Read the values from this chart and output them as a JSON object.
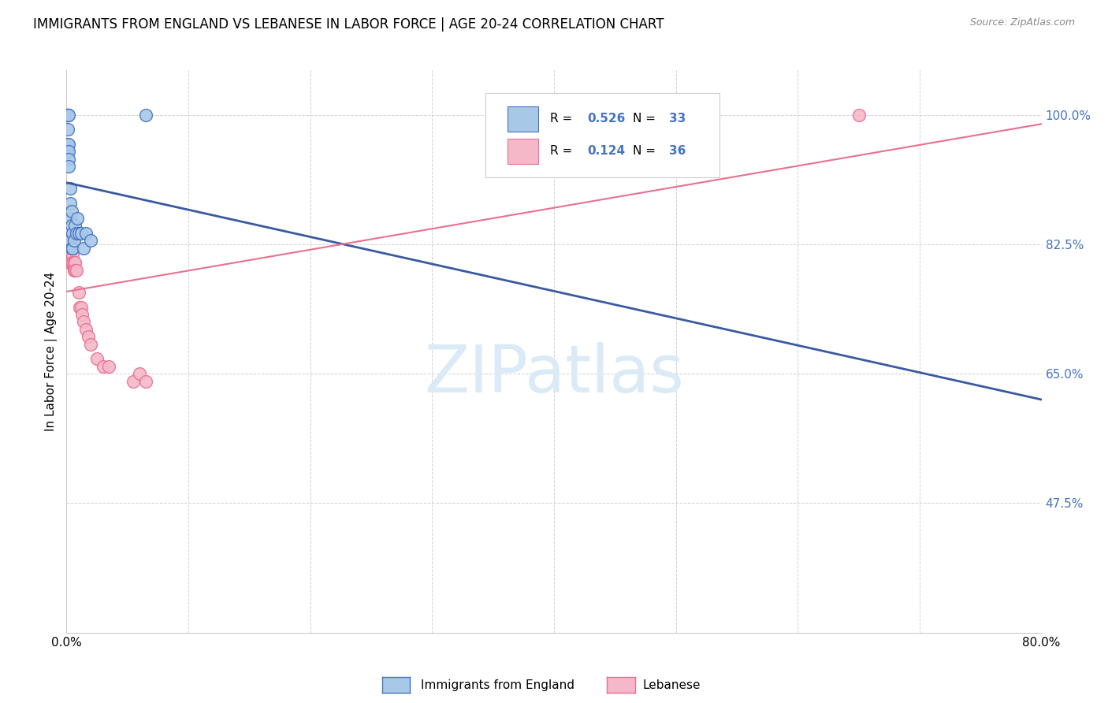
{
  "title": "IMMIGRANTS FROM ENGLAND VS LEBANESE IN LABOR FORCE | AGE 20-24 CORRELATION CHART",
  "source": "Source: ZipAtlas.com",
  "ylabel": "In Labor Force | Age 20-24",
  "xlim": [
    0.0,
    0.8
  ],
  "ylim": [
    0.3,
    1.06
  ],
  "yticks": [
    0.475,
    0.65,
    0.825,
    1.0
  ],
  "ytick_labels": [
    "47.5%",
    "65.0%",
    "82.5%",
    "100.0%"
  ],
  "xtick_positions": [
    0.0,
    0.1,
    0.2,
    0.3,
    0.4,
    0.5,
    0.6,
    0.7,
    0.8
  ],
  "xtick_labels": [
    "0.0%",
    "",
    "",
    "",
    "",
    "",
    "",
    "",
    "80.0%"
  ],
  "england_x": [
    0.001,
    0.001,
    0.001,
    0.001,
    0.001,
    0.001,
    0.001,
    0.001,
    0.001,
    0.002,
    0.002,
    0.002,
    0.002,
    0.002,
    0.003,
    0.003,
    0.003,
    0.003,
    0.004,
    0.004,
    0.004,
    0.005,
    0.005,
    0.006,
    0.007,
    0.008,
    0.009,
    0.01,
    0.012,
    0.014,
    0.016,
    0.02,
    0.065
  ],
  "england_y": [
    1.0,
    1.0,
    1.0,
    1.0,
    1.0,
    1.0,
    0.98,
    0.96,
    0.95,
    1.0,
    0.96,
    0.95,
    0.94,
    0.93,
    0.9,
    0.88,
    0.86,
    0.83,
    0.87,
    0.85,
    0.82,
    0.84,
    0.82,
    0.83,
    0.85,
    0.84,
    0.86,
    0.84,
    0.84,
    0.82,
    0.84,
    0.83,
    1.0
  ],
  "lebanese_x": [
    0.001,
    0.001,
    0.001,
    0.002,
    0.002,
    0.002,
    0.002,
    0.003,
    0.003,
    0.003,
    0.003,
    0.004,
    0.004,
    0.005,
    0.005,
    0.005,
    0.006,
    0.006,
    0.007,
    0.007,
    0.008,
    0.01,
    0.011,
    0.012,
    0.013,
    0.014,
    0.016,
    0.018,
    0.02,
    0.025,
    0.03,
    0.035,
    0.055,
    0.06,
    0.065,
    0.65
  ],
  "lebanese_y": [
    0.83,
    0.82,
    0.81,
    0.83,
    0.82,
    0.81,
    0.8,
    0.83,
    0.82,
    0.81,
    0.8,
    0.82,
    0.8,
    0.82,
    0.81,
    0.8,
    0.8,
    0.79,
    0.8,
    0.79,
    0.79,
    0.76,
    0.74,
    0.74,
    0.73,
    0.72,
    0.71,
    0.7,
    0.69,
    0.67,
    0.66,
    0.66,
    0.64,
    0.65,
    0.64,
    1.0
  ],
  "R_england": 0.526,
  "N_england": 33,
  "R_lebanese": 0.124,
  "N_lebanese": 36,
  "england_scatter_color": "#a8c8e8",
  "england_edge_color": "#4472c4",
  "lebanese_scatter_color": "#f5b8c8",
  "lebanese_edge_color": "#e87090",
  "england_line_color": "#3a5aa0",
  "lebanese_line_color": "#e87090",
  "r_color": "#4472c4",
  "grid_color": "#cccccc",
  "watermark_text": "ZIPatlas",
  "watermark_color": "#daeaf7",
  "legend_label_england": "Immigrants from England",
  "legend_label_lebanese": "Lebanese"
}
